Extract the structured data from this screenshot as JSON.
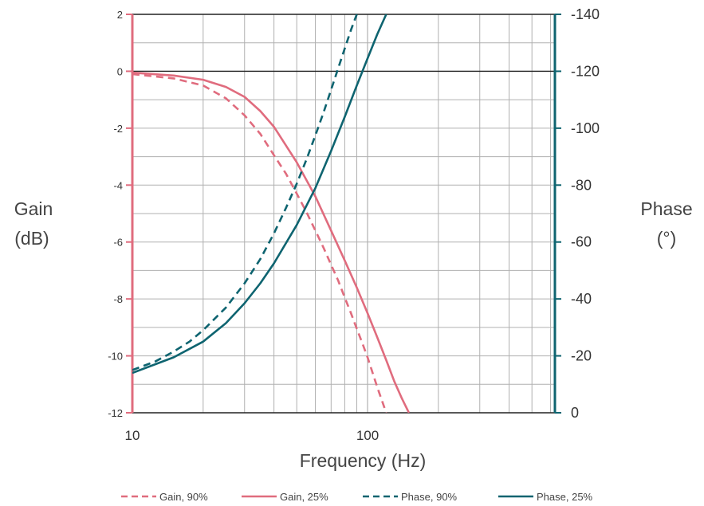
{
  "chart_data": {
    "type": "line",
    "xlabel": "Frequency (Hz)",
    "x_scale": "log",
    "xlim": [
      10,
      150
    ],
    "x_ticks": [
      "10",
      "100"
    ],
    "ylabel_left": [
      "Gain",
      "(dB)"
    ],
    "ylim_left": [
      -12,
      2
    ],
    "y_ticks_left": [
      "2",
      "0",
      "-2",
      "-4",
      "-6",
      "-8",
      "-10",
      "-12"
    ],
    "ylabel_right": [
      "Phase",
      "(°)"
    ],
    "ylim_right": [
      0,
      -140
    ],
    "y_ticks_right": [
      "-140",
      "-120",
      "-100",
      "-80",
      "-60",
      "-40",
      "-20",
      "0"
    ],
    "grid": true,
    "legend_position": "bottom",
    "colors": {
      "gain": "#e06c7e",
      "phase": "#0e6470",
      "grid": "#b0b0b0",
      "zero_line": "#222222"
    },
    "series": [
      {
        "name": "Gain, 90%",
        "axis": "left",
        "style": "dashed",
        "color": "#e06c7e",
        "x": [
          10,
          15,
          20,
          25,
          30,
          35,
          40,
          45,
          50,
          55,
          60,
          65,
          70,
          75,
          80,
          85,
          90,
          95,
          100,
          110,
          120
        ],
        "y": [
          -0.1,
          -0.25,
          -0.5,
          -0.95,
          -1.55,
          -2.2,
          -2.95,
          -3.6,
          -4.3,
          -4.95,
          -5.6,
          -6.2,
          -6.8,
          -7.35,
          -7.95,
          -8.5,
          -9.05,
          -9.55,
          -10.05,
          -11.1,
          -12.0
        ]
      },
      {
        "name": "Gain, 25%",
        "axis": "left",
        "style": "solid",
        "color": "#e06c7e",
        "x": [
          10,
          15,
          20,
          25,
          30,
          35,
          40,
          50,
          60,
          70,
          80,
          90,
          100,
          110,
          120,
          130,
          140,
          150
        ],
        "y": [
          -0.05,
          -0.15,
          -0.3,
          -0.55,
          -0.9,
          -1.4,
          -1.95,
          -3.2,
          -4.4,
          -5.6,
          -6.65,
          -7.6,
          -8.5,
          -9.35,
          -10.15,
          -10.9,
          -11.5,
          -12.0
        ]
      },
      {
        "name": "Phase, 90%",
        "axis": "right",
        "style": "dashed",
        "color": "#0e6470",
        "x": [
          10,
          12.5,
          15,
          17.5,
          20,
          25,
          30,
          35,
          40,
          45,
          50,
          55,
          60,
          65,
          70,
          75,
          80,
          85,
          90
        ],
        "y": [
          -15,
          -18,
          -21.5,
          -25,
          -29,
          -37,
          -45.5,
          -54,
          -63,
          -72,
          -80.5,
          -89,
          -97.5,
          -105.5,
          -113.5,
          -121,
          -128,
          -134.5,
          -140
        ]
      },
      {
        "name": "Phase, 25%",
        "axis": "right",
        "style": "solid",
        "color": "#0e6470",
        "x": [
          10,
          15,
          20,
          25,
          30,
          35,
          40,
          50,
          60,
          70,
          80,
          90,
          100,
          110,
          120
        ],
        "y": [
          -14,
          -19.5,
          -25,
          -31.5,
          -38.5,
          -45.5,
          -52.5,
          -66,
          -79,
          -92,
          -104,
          -115,
          -124.5,
          -133,
          -140
        ]
      }
    ]
  }
}
